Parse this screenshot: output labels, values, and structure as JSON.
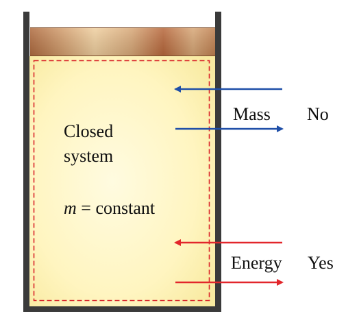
{
  "system": {
    "label_line1": "Closed",
    "label_line2": "system",
    "mass_symbol": "m",
    "mass_relation": " = constant"
  },
  "boundary_interactions": [
    {
      "quantity": "Mass",
      "crosses_boundary": "No",
      "arrow_color": "#1f4fa8"
    },
    {
      "quantity": "Energy",
      "crosses_boundary": "Yes",
      "arrow_color": "#e2262b"
    }
  ],
  "colors": {
    "container_wall": "#3a3a3a",
    "piston": "#b8784a",
    "gas_fill": "#fff8c8",
    "boundary_dashed": "#d9242a"
  }
}
